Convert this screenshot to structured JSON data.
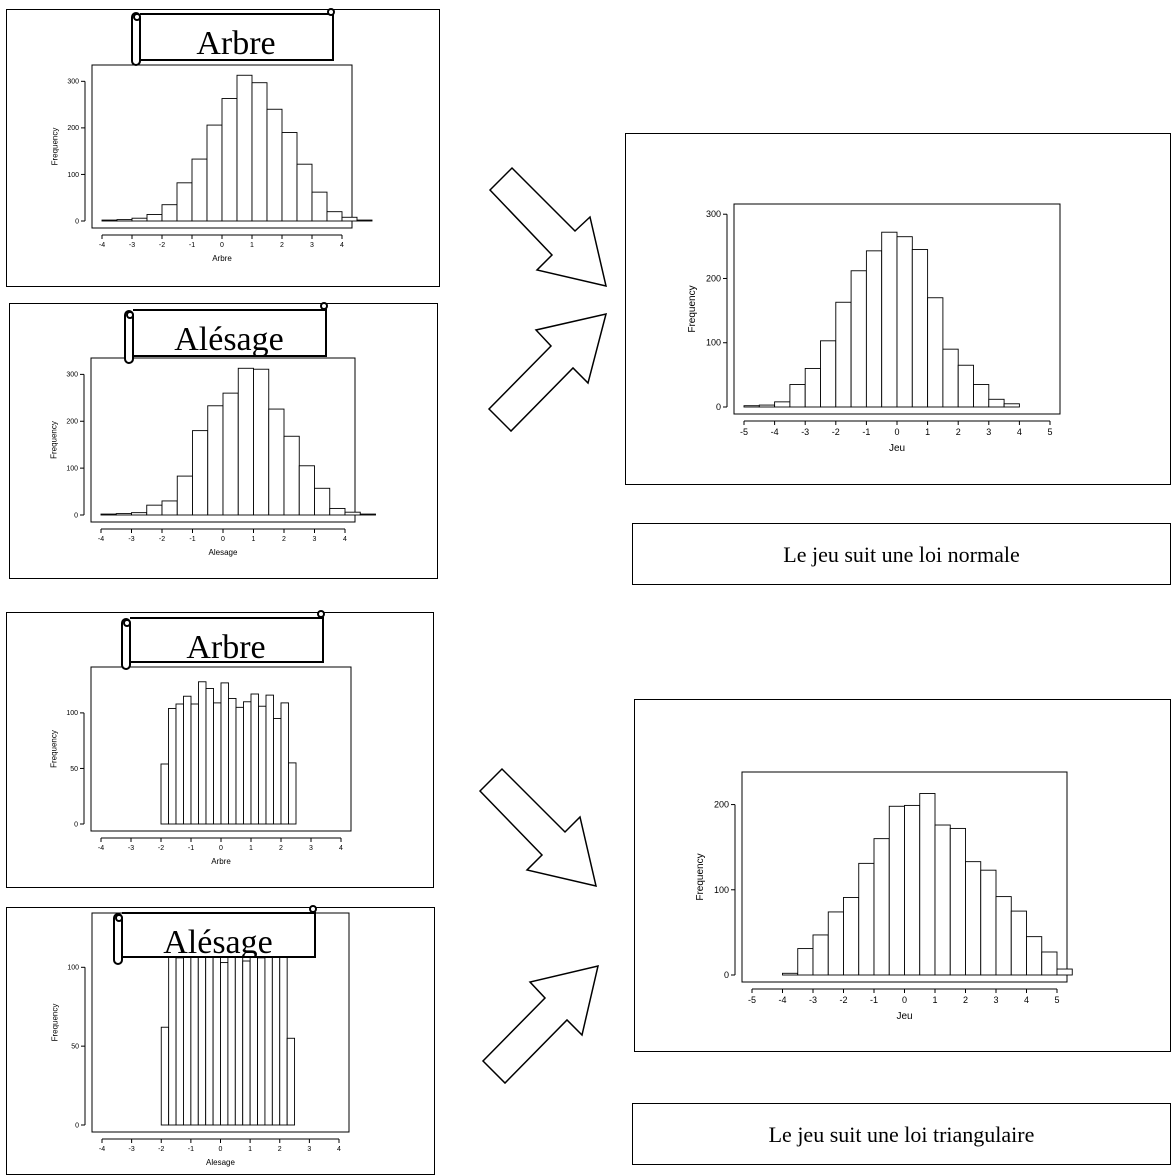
{
  "scroll_labels": {
    "arbre_1": "Arbre",
    "alesage_1": "Alésage",
    "arbre_2": "Arbre",
    "alesage_2": "Alésage"
  },
  "captions": {
    "normal": "Le jeu suit une loi normale",
    "triangular": "Le jeu suit une loi triangulaire"
  },
  "chart_data": [
    {
      "id": "arbre_normal",
      "type": "bar",
      "xlabel": "Arbre",
      "ylabel": "Frequency",
      "xlim": [
        -4,
        4
      ],
      "ylim": [
        0,
        320
      ],
      "xticks": [
        -4,
        -3,
        -2,
        -1,
        0,
        1,
        2,
        3,
        4
      ],
      "yticks": [
        0,
        100,
        200,
        300
      ],
      "bin_width": 0.5,
      "bin_start": -3.75,
      "values": [
        2,
        3,
        6,
        14,
        35,
        82,
        133,
        206,
        263,
        313,
        297,
        240,
        190,
        122,
        62,
        20,
        8,
        2
      ],
      "grid": false
    },
    {
      "id": "alesage_normal",
      "type": "bar",
      "xlabel": "Alesage",
      "ylabel": "Frequency",
      "xlim": [
        -4,
        4
      ],
      "ylim": [
        0,
        320
      ],
      "xticks": [
        -4,
        -3,
        -2,
        -1,
        0,
        1,
        2,
        3,
        4
      ],
      "yticks": [
        0,
        100,
        200,
        300
      ],
      "bin_width": 0.5,
      "bin_start": -3.75,
      "values": [
        2,
        3,
        5,
        21,
        30,
        83,
        180,
        233,
        260,
        313,
        311,
        226,
        168,
        105,
        57,
        14,
        6,
        2
      ],
      "grid": false
    },
    {
      "id": "jeu_normal",
      "type": "bar",
      "xlabel": "Jeu",
      "ylabel": "Frequency",
      "xlim": [
        -5,
        5
      ],
      "ylim": [
        0,
        305
      ],
      "xticks": [
        -5,
        -4,
        -3,
        -2,
        -1,
        0,
        1,
        2,
        3,
        4,
        5
      ],
      "yticks": [
        0,
        100,
        200,
        300
      ],
      "bin_width": 0.5,
      "bin_start": -4.75,
      "values": [
        2,
        3,
        8,
        35,
        60,
        103,
        163,
        212,
        243,
        272,
        265,
        245,
        170,
        90,
        65,
        35,
        12,
        5
      ],
      "grid": false
    },
    {
      "id": "arbre_uniform",
      "type": "bar",
      "xlabel": "Arbre",
      "ylabel": "Frequency",
      "xlim": [
        -4,
        4
      ],
      "ylim": [
        0,
        135
      ],
      "xticks": [
        -4,
        -3,
        -2,
        -1,
        0,
        1,
        2,
        3,
        4
      ],
      "yticks": [
        0,
        50,
        100
      ],
      "bin_width": 0.25,
      "bin_start": -1.875,
      "values": [
        54,
        104,
        108,
        115,
        108,
        128,
        122,
        109,
        127,
        113,
        105,
        110,
        117,
        106,
        116,
        95,
        109,
        55
      ],
      "grid": false
    },
    {
      "id": "alesage_uniform",
      "type": "bar",
      "xlabel": "Alesage",
      "ylabel": "Frequency",
      "xlim": [
        -4,
        4
      ],
      "ylim": [
        0,
        130
      ],
      "xticks": [
        -4,
        -3,
        -2,
        -1,
        0,
        1,
        2,
        3,
        4
      ],
      "yticks": [
        0,
        50,
        100
      ],
      "bin_width": 0.25,
      "bin_start": -1.875,
      "values": [
        62,
        120,
        106,
        111,
        107,
        121,
        109,
        117,
        103,
        117,
        111,
        104,
        113,
        106,
        107,
        121,
        108,
        55
      ],
      "grid": false
    },
    {
      "id": "jeu_triangular",
      "type": "bar",
      "xlabel": "Jeu",
      "ylabel": "Frequency",
      "xlim": [
        -5,
        5
      ],
      "ylim": [
        0,
        230
      ],
      "xticks": [
        -5,
        -4,
        -3,
        -2,
        -1,
        0,
        1,
        2,
        3,
        4,
        5
      ],
      "yticks": [
        0,
        100,
        200
      ],
      "bin_width": 0.5,
      "bin_start": -3.75,
      "values": [
        2,
        31,
        47,
        74,
        91,
        131,
        160,
        198,
        199,
        213,
        176,
        172,
        133,
        123,
        92,
        75,
        45,
        27,
        7
      ],
      "grid": false
    }
  ]
}
